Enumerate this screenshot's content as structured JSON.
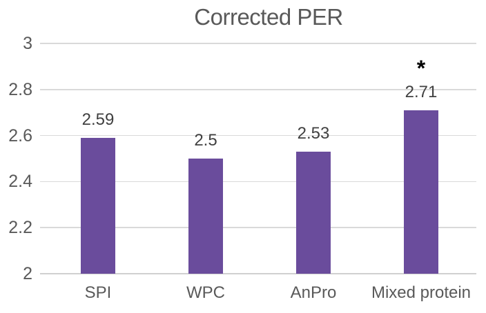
{
  "chart_data": {
    "type": "bar",
    "title": "Corrected PER",
    "categories": [
      "SPI",
      "WPC",
      "AnPro",
      "Mixed protein"
    ],
    "values": [
      2.59,
      2.5,
      2.53,
      2.71
    ],
    "value_labels": [
      "2.59",
      "2.5",
      "2.53",
      "2.71"
    ],
    "annotations": [
      "",
      "",
      "",
      "*"
    ],
    "xlabel": "",
    "ylabel": "",
    "ylim": [
      2,
      3
    ],
    "yticks": [
      2,
      2.2,
      2.4,
      2.6,
      2.8,
      3
    ],
    "ytick_labels": [
      "2",
      "2.2",
      "2.4",
      "2.6",
      "2.8",
      "3"
    ],
    "grid": true,
    "legend": "none",
    "colors": {
      "bar": "#6A4C9C",
      "gridline": "#D9D9D9",
      "axis_line": "#D0D0D0",
      "title": "#595959",
      "tick_text": "#595959",
      "data_label": "#404040",
      "annotation": "#000000",
      "background": "#FFFFFF"
    }
  }
}
